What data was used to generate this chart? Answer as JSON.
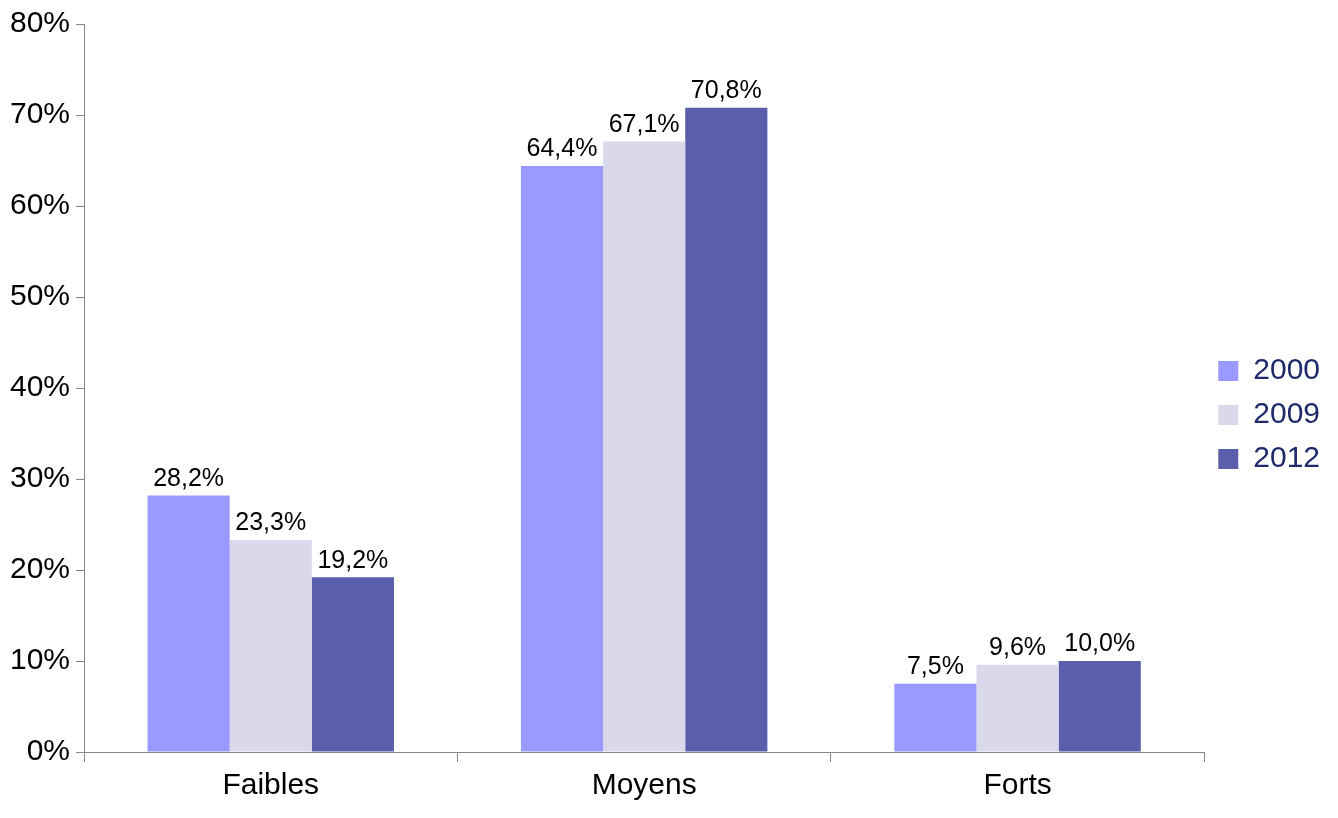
{
  "chart_data": {
    "type": "bar",
    "categories": [
      "Faibles",
      "Moyens",
      "Forts"
    ],
    "series": [
      {
        "name": "2000",
        "color": "#9999ff",
        "values": [
          28.2,
          64.4,
          7.5
        ],
        "value_labels": [
          "28,2%",
          "64,4%",
          "7,5%"
        ]
      },
      {
        "name": "2009",
        "color": "#d9d9eb",
        "values": [
          23.3,
          67.1,
          9.6
        ],
        "value_labels": [
          "23,3%",
          "67,1%",
          "9,6%"
        ]
      },
      {
        "name": "2012",
        "color": "#5b5eab",
        "values": [
          19.2,
          70.8,
          10.0
        ],
        "value_labels": [
          "19,2%",
          "70,8%",
          "10,0%"
        ]
      }
    ],
    "ylim": [
      0,
      80
    ],
    "yticks": [
      {
        "value": 0,
        "label": "0%"
      },
      {
        "value": 10,
        "label": "10%"
      },
      {
        "value": 20,
        "label": "20%"
      },
      {
        "value": 30,
        "label": "30%"
      },
      {
        "value": 40,
        "label": "40%"
      },
      {
        "value": 50,
        "label": "50%"
      },
      {
        "value": 60,
        "label": "60%"
      },
      {
        "value": 70,
        "label": "70%"
      },
      {
        "value": 80,
        "label": "80%"
      }
    ],
    "grid": false,
    "legend": "right"
  }
}
